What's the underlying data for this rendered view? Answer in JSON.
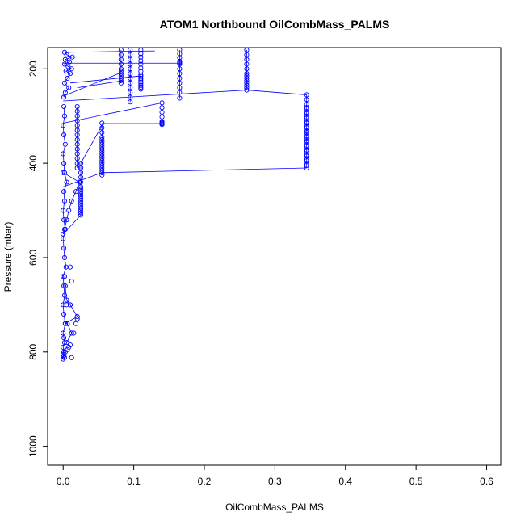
{
  "chart_data": {
    "type": "scatter",
    "title": "ATOM1 Northbound OilCombMass_PALMS",
    "xlabel": "OilCombMass_PALMS",
    "ylabel": "Pressure (mbar)",
    "xlim": [
      -0.022,
      0.62
    ],
    "ylim": [
      1040,
      155
    ],
    "y_reversed": true,
    "x_ticks": [
      0.0,
      0.1,
      0.2,
      0.3,
      0.4,
      0.5,
      0.6
    ],
    "x_tick_labels": [
      "0.0",
      "0.1",
      "0.2",
      "0.3",
      "0.4",
      "0.5",
      "0.6"
    ],
    "y_ticks": [
      200,
      400,
      600,
      800,
      1000
    ],
    "y_tick_labels": [
      "200",
      "400",
      "600",
      "800",
      "1000"
    ],
    "grid": false,
    "legend": "none",
    "marker": "open-circle",
    "connect_points": true,
    "series_color": "#0000ff",
    "series": [
      {
        "x": [
          0.0,
          0.001,
          0.0,
          0.002,
          0.001,
          0.0,
          0.003,
          0.001,
          0.0,
          0.002,
          0.001,
          0.0,
          0.004,
          0.002,
          0.001,
          0.0,
          0.003,
          0.001,
          0.0,
          0.002,
          0.001,
          0.005,
          0.002,
          0.001,
          0.0,
          0.003,
          0.001,
          0.0,
          0.002,
          0.001
        ],
        "y": [
          810,
          800,
          790,
          780,
          770,
          760,
          740,
          720,
          700,
          680,
          660,
          640,
          620,
          600,
          580,
          560,
          540,
          520,
          500,
          480,
          460,
          440,
          420,
          400,
          380,
          360,
          340,
          320,
          300,
          280
        ]
      },
      {
        "x": [
          0.005,
          0.012,
          0.006,
          0.003,
          0.02,
          0.01,
          0.005,
          0.003,
          0.002
        ],
        "y": [
          780,
          760,
          740,
          740,
          725,
          700,
          690,
          660,
          640
        ]
      },
      {
        "x": [
          0.001,
          0.003,
          0.008,
          0.002,
          0.006,
          0.01,
          0.004,
          0.012,
          0.007,
          0.002,
          0.009,
          0.003,
          0.013,
          0.005,
          0.002
        ],
        "y": [
          260,
          250,
          240,
          230,
          220,
          210,
          205,
          200,
          195,
          190,
          185,
          180,
          175,
          170,
          165
        ]
      },
      {
        "x": [
          0.0,
          0.002,
          0.005,
          0.008,
          0.012,
          0.018,
          0.023,
          0.0
        ],
        "y": [
          550,
          540,
          520,
          500,
          480,
          460,
          440,
          420
        ]
      },
      {
        "x": [
          0.025,
          0.025,
          0.025,
          0.025,
          0.025,
          0.025,
          0.025,
          0.025,
          0.025,
          0.025,
          0.025,
          0.025,
          0.025,
          0.025,
          0.025,
          0.025,
          0.025,
          0.025
        ],
        "y": [
          400,
          410,
          420,
          430,
          440,
          450,
          460,
          470,
          480,
          490,
          500,
          510,
          505,
          495,
          485,
          475,
          465,
          455
        ]
      },
      {
        "x": [
          0.02,
          0.02,
          0.02,
          0.02,
          0.02,
          0.02,
          0.02,
          0.02,
          0.02,
          0.02,
          0.02,
          0.02,
          0.02,
          0.02
        ],
        "y": [
          280,
          290,
          300,
          310,
          320,
          330,
          340,
          350,
          360,
          370,
          380,
          390,
          400,
          410
        ]
      },
      {
        "x": [
          0.055,
          0.055,
          0.055,
          0.055,
          0.055,
          0.055,
          0.055,
          0.055,
          0.055,
          0.055,
          0.055,
          0.055,
          0.055,
          0.055,
          0.055,
          0.055,
          0.055,
          0.055,
          0.055,
          0.055
        ],
        "y": [
          315,
          325,
          335,
          345,
          355,
          365,
          375,
          385,
          395,
          405,
          415,
          425,
          420,
          410,
          400,
          390,
          380,
          370,
          360,
          350
        ]
      },
      {
        "x": [
          0.082,
          0.082,
          0.082,
          0.082,
          0.082,
          0.082,
          0.082,
          0.082,
          0.082,
          0.082,
          0.082
        ],
        "y": [
          160,
          170,
          180,
          190,
          200,
          210,
          220,
          230,
          225,
          215,
          205
        ]
      },
      {
        "x": [
          0.095,
          0.095,
          0.095,
          0.095,
          0.095,
          0.095,
          0.095,
          0.095,
          0.095,
          0.095,
          0.095,
          0.095
        ],
        "y": [
          160,
          170,
          180,
          190,
          200,
          210,
          220,
          230,
          240,
          250,
          260,
          270
        ]
      },
      {
        "x": [
          0.11,
          0.11,
          0.11,
          0.11,
          0.11,
          0.11,
          0.11,
          0.11,
          0.11,
          0.11,
          0.11,
          0.11,
          0.11,
          0.11,
          0.11,
          0.11
        ],
        "y": [
          160,
          168,
          175,
          183,
          190,
          198,
          205,
          213,
          220,
          228,
          235,
          243,
          239,
          231,
          224,
          216
        ]
      },
      {
        "x": [
          0.14,
          0.14,
          0.14,
          0.14,
          0.14,
          0.14,
          0.14,
          0.14,
          0.14
        ],
        "y": [
          272,
          282,
          292,
          302,
          312,
          316,
          318,
          316,
          314
        ]
      },
      {
        "x": [
          0.165,
          0.165,
          0.165,
          0.165,
          0.165,
          0.165,
          0.165,
          0.165,
          0.165,
          0.165,
          0.165,
          0.165,
          0.165,
          0.165
        ],
        "y": [
          160,
          168,
          176,
          184,
          188,
          186,
          190,
          200,
          210,
          220,
          230,
          240,
          250,
          262
        ]
      },
      {
        "x": [
          0.26,
          0.26,
          0.26,
          0.26,
          0.26,
          0.26,
          0.26,
          0.26,
          0.26,
          0.26,
          0.26,
          0.26,
          0.26
        ],
        "y": [
          160,
          170,
          180,
          190,
          200,
          210,
          215,
          220,
          225,
          230,
          235,
          240,
          245
        ]
      },
      {
        "x": [
          0.345,
          0.345,
          0.345,
          0.345,
          0.345,
          0.345,
          0.345,
          0.345,
          0.345,
          0.345,
          0.345,
          0.345,
          0.345,
          0.345,
          0.345,
          0.345,
          0.345,
          0.345,
          0.345,
          0.345,
          0.345,
          0.345,
          0.345,
          0.345,
          0.345,
          0.345,
          0.345,
          0.345,
          0.345,
          0.345
        ],
        "y": [
          255,
          265,
          275,
          285,
          295,
          305,
          315,
          325,
          335,
          345,
          355,
          365,
          375,
          385,
          395,
          405,
          410,
          402,
          392,
          382,
          372,
          362,
          352,
          342,
          332,
          322,
          312,
          302,
          292,
          282
        ]
      }
    ],
    "connectors": [
      {
        "x": [
          0.165,
          0.0
        ],
        "y": [
          188,
          188
        ]
      },
      {
        "x": [
          0.13,
          0.003
        ],
        "y": [
          162,
          165
        ]
      },
      {
        "x": [
          0.11,
          0.01
        ],
        "y": [
          215,
          230
        ]
      },
      {
        "x": [
          0.085,
          0.02
        ],
        "y": [
          225,
          240
        ]
      },
      {
        "x": [
          0.082,
          0.0
        ],
        "y": [
          208,
          258
        ]
      },
      {
        "x": [
          0.14,
          0.0
        ],
        "y": [
          272,
          315
        ]
      },
      {
        "x": [
          0.14,
          0.055
        ],
        "y": [
          316,
          316
        ]
      },
      {
        "x": [
          0.26,
          0.0
        ],
        "y": [
          245,
          268
        ]
      },
      {
        "x": [
          0.345,
          0.055
        ],
        "y": [
          410,
          420
        ]
      },
      {
        "x": [
          0.055,
          0.0
        ],
        "y": [
          420,
          450
        ]
      },
      {
        "x": [
          0.345,
          0.26
        ],
        "y": [
          255,
          245
        ]
      },
      {
        "x": [
          0.055,
          0.025
        ],
        "y": [
          320,
          400
        ]
      },
      {
        "x": [
          0.025,
          0.0
        ],
        "y": [
          510,
          550
        ]
      }
    ],
    "dense_points": [
      {
        "x": 0.0,
        "y": 805
      },
      {
        "x": 0.001,
        "y": 808
      },
      {
        "x": 0.002,
        "y": 812
      },
      {
        "x": 0.0,
        "y": 815
      },
      {
        "x": 0.003,
        "y": 800
      },
      {
        "x": 0.006,
        "y": 795
      },
      {
        "x": 0.008,
        "y": 790
      },
      {
        "x": 0.01,
        "y": 785
      },
      {
        "x": 0.012,
        "y": 812
      },
      {
        "x": 0.015,
        "y": 760
      },
      {
        "x": 0.018,
        "y": 740
      },
      {
        "x": 0.02,
        "y": 730
      },
      {
        "x": 0.01,
        "y": 700
      },
      {
        "x": 0.012,
        "y": 650
      },
      {
        "x": 0.01,
        "y": 620
      },
      {
        "x": 0.005,
        "y": 700
      }
    ]
  }
}
